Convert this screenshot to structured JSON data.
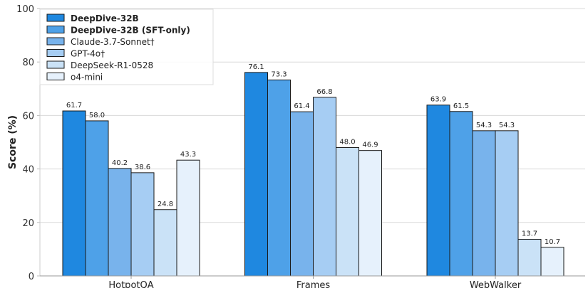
{
  "chart_data": {
    "type": "bar",
    "title": "",
    "xlabel": "",
    "ylabel": "Score (%)",
    "ylim": [
      0,
      100
    ],
    "yticks": [
      "0",
      "20",
      "40",
      "60",
      "80",
      "100"
    ],
    "grid": true,
    "legend_placement": "top-left",
    "categories": [
      "HotpotQA",
      "Frames",
      "WebWalker"
    ],
    "series": [
      {
        "name": "DeepDive-32B",
        "bold": true,
        "color": "#1f88e0",
        "values": [
          61.7,
          76.1,
          63.9
        ]
      },
      {
        "name": "DeepDive-32B (SFT-only)",
        "bold": true,
        "color": "#4ea1e8",
        "values": [
          58.0,
          73.3,
          61.5
        ]
      },
      {
        "name": "Claude-3.7-Sonnet†",
        "bold": false,
        "color": "#78b3ec",
        "values": [
          40.2,
          61.4,
          54.3
        ]
      },
      {
        "name": "GPT-4o†",
        "bold": false,
        "color": "#a6cdf3",
        "values": [
          38.6,
          66.8,
          54.3
        ]
      },
      {
        "name": "DeepSeek-R1-0528",
        "bold": false,
        "color": "#cae2f7",
        "values": [
          24.8,
          48.0,
          13.7
        ]
      },
      {
        "name": "o4-mini",
        "bold": false,
        "color": "#e6f1fc",
        "values": [
          43.3,
          46.9,
          10.7
        ]
      }
    ]
  }
}
